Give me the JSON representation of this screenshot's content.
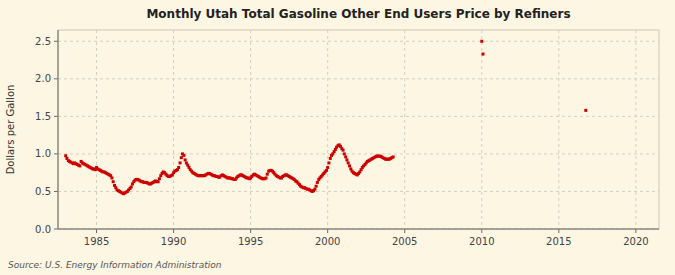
{
  "chart_data": {
    "type": "scatter",
    "title": "Monthly Utah Total Gasoline Other End Users Price by Refiners",
    "ylabel": "Dollars per Gallon",
    "source": "Source: U.S. Energy Information Administration",
    "color": "#cc0000",
    "marker": "square",
    "grid": true,
    "xlim": [
      1982.5,
      2021.5
    ],
    "ylim": [
      0.0,
      2.65
    ],
    "xticks": [
      1985,
      1990,
      1995,
      2000,
      2005,
      2010,
      2015,
      2020
    ],
    "yticks": [
      {
        "value": 0.0,
        "label": "0.0"
      },
      0.5,
      {
        "value": 1.0,
        "label": "1.0"
      },
      1.5,
      {
        "value": 2.0,
        "label": "2.0"
      },
      2.5
    ],
    "x": [
      1983.0,
      1983.08,
      1983.17,
      1983.25,
      1983.33,
      1983.42,
      1983.5,
      1983.58,
      1983.67,
      1983.75,
      1983.83,
      1983.92,
      1984.0,
      1984.08,
      1984.17,
      1984.25,
      1984.33,
      1984.42,
      1984.5,
      1984.58,
      1984.67,
      1984.75,
      1984.83,
      1984.92,
      1985.0,
      1985.08,
      1985.17,
      1985.25,
      1985.33,
      1985.42,
      1985.5,
      1985.58,
      1985.67,
      1985.75,
      1985.83,
      1985.92,
      1986.0,
      1986.08,
      1986.17,
      1986.25,
      1986.33,
      1986.42,
      1986.5,
      1986.58,
      1986.67,
      1986.75,
      1986.83,
      1986.92,
      1987.0,
      1987.08,
      1987.17,
      1987.25,
      1987.33,
      1987.42,
      1987.5,
      1987.58,
      1987.67,
      1987.75,
      1987.83,
      1987.92,
      1988.0,
      1988.08,
      1988.17,
      1988.25,
      1988.33,
      1988.42,
      1988.5,
      1988.58,
      1988.67,
      1988.75,
      1988.83,
      1988.92,
      1989.0,
      1989.08,
      1989.17,
      1989.25,
      1989.33,
      1989.42,
      1989.5,
      1989.58,
      1989.67,
      1989.75,
      1989.83,
      1989.92,
      1990.0,
      1990.08,
      1990.17,
      1990.25,
      1990.33,
      1990.42,
      1990.5,
      1990.58,
      1990.67,
      1990.75,
      1990.83,
      1990.92,
      1991.0,
      1991.08,
      1991.17,
      1991.25,
      1991.33,
      1991.42,
      1991.5,
      1991.58,
      1991.67,
      1991.75,
      1991.83,
      1991.92,
      1992.0,
      1992.08,
      1992.17,
      1992.25,
      1992.33,
      1992.42,
      1992.5,
      1992.58,
      1992.67,
      1992.75,
      1992.83,
      1992.92,
      1993.0,
      1993.08,
      1993.17,
      1993.25,
      1993.33,
      1993.42,
      1993.5,
      1993.58,
      1993.67,
      1993.75,
      1993.83,
      1993.92,
      1994.0,
      1994.08,
      1994.17,
      1994.25,
      1994.33,
      1994.42,
      1994.5,
      1994.58,
      1994.67,
      1994.75,
      1994.83,
      1994.92,
      1995.0,
      1995.08,
      1995.17,
      1995.25,
      1995.33,
      1995.42,
      1995.5,
      1995.58,
      1995.67,
      1995.75,
      1995.83,
      1995.92,
      1996.0,
      1996.08,
      1996.17,
      1996.25,
      1996.33,
      1996.42,
      1996.5,
      1996.58,
      1996.67,
      1996.75,
      1996.83,
      1996.92,
      1997.0,
      1997.08,
      1997.17,
      1997.25,
      1997.33,
      1997.42,
      1997.5,
      1997.58,
      1997.67,
      1997.75,
      1997.83,
      1997.92,
      1998.0,
      1998.08,
      1998.17,
      1998.25,
      1998.33,
      1998.42,
      1998.5,
      1998.58,
      1998.67,
      1998.75,
      1998.83,
      1998.92,
      1999.0,
      1999.08,
      1999.17,
      1999.25,
      1999.33,
      1999.42,
      1999.5,
      1999.58,
      1999.67,
      1999.75,
      1999.83,
      1999.92,
      2000.0,
      2000.08,
      2000.17,
      2000.25,
      2000.33,
      2000.42,
      2000.5,
      2000.58,
      2000.67,
      2000.75,
      2000.83,
      2000.92,
      2001.0,
      2001.08,
      2001.17,
      2001.25,
      2001.33,
      2001.42,
      2001.5,
      2001.58,
      2001.67,
      2001.75,
      2001.83,
      2001.92,
      2002.0,
      2002.08,
      2002.17,
      2002.25,
      2002.33,
      2002.42,
      2002.5,
      2002.58,
      2002.67,
      2002.75,
      2002.83,
      2002.92,
      2003.0,
      2003.08,
      2003.17,
      2003.25,
      2003.33,
      2003.42,
      2003.5,
      2003.58,
      2003.67,
      2003.75,
      2003.83,
      2003.92,
      2004.0,
      2004.08,
      2004.17,
      2004.25,
      2010.0,
      2010.08,
      2016.75
    ],
    "values": [
      0.975,
      0.94,
      0.91,
      0.9,
      0.89,
      0.88,
      0.87,
      0.88,
      0.87,
      0.86,
      0.85,
      0.84,
      0.9,
      0.88,
      0.87,
      0.86,
      0.85,
      0.84,
      0.83,
      0.82,
      0.81,
      0.8,
      0.8,
      0.79,
      0.82,
      0.8,
      0.79,
      0.78,
      0.77,
      0.76,
      0.76,
      0.75,
      0.74,
      0.73,
      0.72,
      0.71,
      0.68,
      0.63,
      0.58,
      0.55,
      0.52,
      0.51,
      0.5,
      0.49,
      0.48,
      0.47,
      0.48,
      0.49,
      0.5,
      0.52,
      0.54,
      0.56,
      0.6,
      0.63,
      0.65,
      0.66,
      0.66,
      0.65,
      0.64,
      0.63,
      0.63,
      0.62,
      0.62,
      0.62,
      0.61,
      0.6,
      0.6,
      0.61,
      0.62,
      0.63,
      0.64,
      0.63,
      0.63,
      0.67,
      0.71,
      0.74,
      0.76,
      0.75,
      0.73,
      0.71,
      0.7,
      0.7,
      0.71,
      0.72,
      0.75,
      0.77,
      0.78,
      0.79,
      0.82,
      0.88,
      0.95,
      1.0,
      0.98,
      0.92,
      0.88,
      0.85,
      0.82,
      0.79,
      0.77,
      0.75,
      0.74,
      0.73,
      0.72,
      0.71,
      0.71,
      0.71,
      0.71,
      0.71,
      0.71,
      0.72,
      0.73,
      0.74,
      0.74,
      0.73,
      0.72,
      0.71,
      0.71,
      0.7,
      0.7,
      0.69,
      0.69,
      0.71,
      0.72,
      0.71,
      0.7,
      0.69,
      0.68,
      0.68,
      0.68,
      0.67,
      0.67,
      0.66,
      0.66,
      0.68,
      0.7,
      0.71,
      0.72,
      0.72,
      0.71,
      0.7,
      0.69,
      0.68,
      0.68,
      0.67,
      0.68,
      0.7,
      0.72,
      0.73,
      0.72,
      0.71,
      0.7,
      0.69,
      0.68,
      0.67,
      0.67,
      0.67,
      0.68,
      0.73,
      0.77,
      0.78,
      0.78,
      0.77,
      0.75,
      0.73,
      0.71,
      0.7,
      0.69,
      0.68,
      0.68,
      0.7,
      0.71,
      0.72,
      0.72,
      0.71,
      0.7,
      0.69,
      0.68,
      0.67,
      0.66,
      0.64,
      0.63,
      0.61,
      0.59,
      0.57,
      0.56,
      0.55,
      0.55,
      0.54,
      0.53,
      0.53,
      0.52,
      0.51,
      0.5,
      0.51,
      0.53,
      0.57,
      0.62,
      0.66,
      0.68,
      0.7,
      0.72,
      0.74,
      0.76,
      0.78,
      0.82,
      0.88,
      0.94,
      0.98,
      1.0,
      1.03,
      1.06,
      1.09,
      1.11,
      1.12,
      1.1,
      1.07,
      1.05,
      1.0,
      0.96,
      0.92,
      0.88,
      0.84,
      0.8,
      0.77,
      0.75,
      0.74,
      0.73,
      0.72,
      0.74,
      0.76,
      0.79,
      0.82,
      0.84,
      0.86,
      0.88,
      0.9,
      0.91,
      0.92,
      0.93,
      0.94,
      0.95,
      0.96,
      0.97,
      0.97,
      0.97,
      0.97,
      0.96,
      0.95,
      0.94,
      0.93,
      0.93,
      0.93,
      0.93,
      0.94,
      0.95,
      0.96,
      2.5,
      2.33,
      1.58
    ]
  }
}
